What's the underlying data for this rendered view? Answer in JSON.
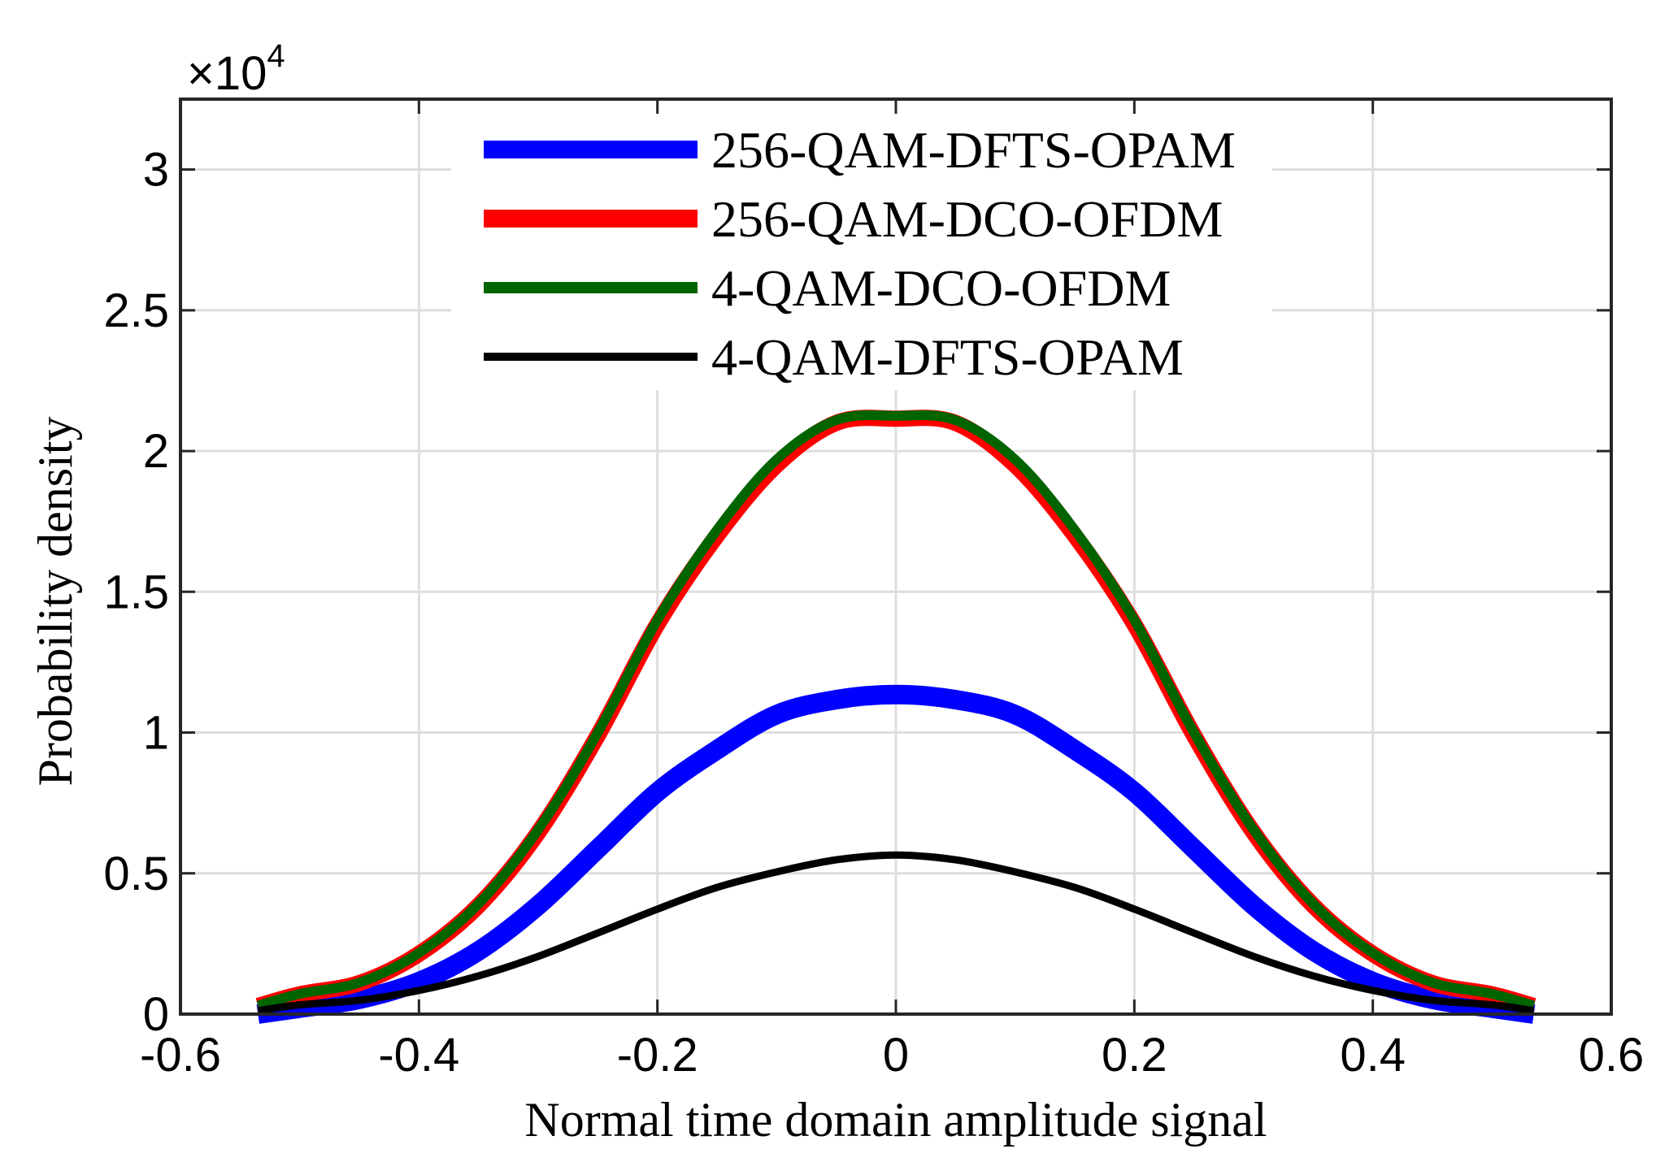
{
  "chart_data": {
    "type": "line",
    "title": "",
    "xlabel": "Normal time domain amplitude signal",
    "ylabel": "Probability density",
    "xlim": [
      -0.6,
      0.6
    ],
    "ylim": [
      0,
      32500
    ],
    "grid": true,
    "legend_position": "top-center",
    "y_exponent_label": "×10",
    "y_exponent_power": "4",
    "x_ticks": [
      {
        "value": -0.6,
        "label": "-0.6"
      },
      {
        "value": -0.4,
        "label": "-0.4"
      },
      {
        "value": -0.2,
        "label": "-0.2"
      },
      {
        "value": 0,
        "label": "0"
      },
      {
        "value": 0.2,
        "label": "0.2"
      },
      {
        "value": 0.4,
        "label": "0.4"
      },
      {
        "value": 0.6,
        "label": "0.6"
      }
    ],
    "y_ticks": [
      {
        "value": 0,
        "label": "0"
      },
      {
        "value": 5000,
        "label": "0.5"
      },
      {
        "value": 10000,
        "label": "1"
      },
      {
        "value": 15000,
        "label": "1.5"
      },
      {
        "value": 20000,
        "label": "2"
      },
      {
        "value": 25000,
        "label": "2.5"
      },
      {
        "value": 30000,
        "label": "3"
      }
    ],
    "series": [
      {
        "name": "256-QAM-DFTS-OPAM",
        "color": "#0000ff",
        "x": [
          -0.535,
          -0.5,
          -0.45,
          -0.4,
          -0.35,
          -0.3,
          -0.25,
          -0.2,
          -0.15,
          -0.1,
          -0.05,
          0,
          0.05,
          0.1,
          0.15,
          0.2,
          0.25,
          0.3,
          0.35,
          0.4,
          0.45,
          0.5,
          0.535
        ],
        "y": [
          0,
          212,
          525,
          1155,
          2245,
          3860,
          5870,
          7890,
          9390,
          10640,
          11170,
          11350,
          11170,
          10640,
          9390,
          7890,
          5870,
          3860,
          2245,
          1155,
          525,
          212,
          0
        ]
      },
      {
        "name": "256-QAM-DCO-OFDM",
        "color": "#ff0000",
        "x": [
          -0.535,
          -0.5,
          -0.45,
          -0.4,
          -0.35,
          -0.3,
          -0.25,
          -0.2,
          -0.15,
          -0.1,
          -0.05,
          0,
          0.05,
          0.1,
          0.15,
          0.2,
          0.25,
          0.3,
          0.35,
          0.4,
          0.45,
          0.5,
          0.535
        ],
        "y": [
          290,
          705,
          1100,
          2140,
          3860,
          6450,
          9900,
          13850,
          17000,
          19500,
          21000,
          21150,
          21000,
          19500,
          17000,
          13850,
          9900,
          6450,
          3860,
          2140,
          1100,
          705,
          290
        ]
      },
      {
        "name": "4-QAM-DCO-OFDM",
        "color": "#006400",
        "x": [
          -0.535,
          -0.5,
          -0.45,
          -0.4,
          -0.35,
          -0.3,
          -0.25,
          -0.2,
          -0.15,
          -0.1,
          -0.05,
          0,
          0.05,
          0.1,
          0.15,
          0.2,
          0.25,
          0.3,
          0.35,
          0.4,
          0.45,
          0.5,
          0.535
        ],
        "y": [
          300,
          720,
          1120,
          2170,
          3920,
          6550,
          10000,
          14000,
          17200,
          19700,
          21100,
          21250,
          21100,
          19700,
          17200,
          14000,
          10000,
          6550,
          3920,
          2170,
          1120,
          720,
          300
        ]
      },
      {
        "name": "4-QAM-DFTS-OPAM",
        "color": "#000000",
        "x": [
          -0.535,
          -0.5,
          -0.45,
          -0.4,
          -0.35,
          -0.3,
          -0.25,
          -0.2,
          -0.15,
          -0.1,
          -0.05,
          0,
          0.05,
          0.1,
          0.15,
          0.2,
          0.25,
          0.3,
          0.35,
          0.4,
          0.45,
          0.5,
          0.535
        ],
        "y": [
          120,
          330,
          490,
          840,
          1360,
          2050,
          2880,
          3730,
          4500,
          5050,
          5480,
          5650,
          5480,
          5050,
          4500,
          3730,
          2880,
          2050,
          1360,
          840,
          490,
          330,
          120
        ]
      }
    ]
  }
}
